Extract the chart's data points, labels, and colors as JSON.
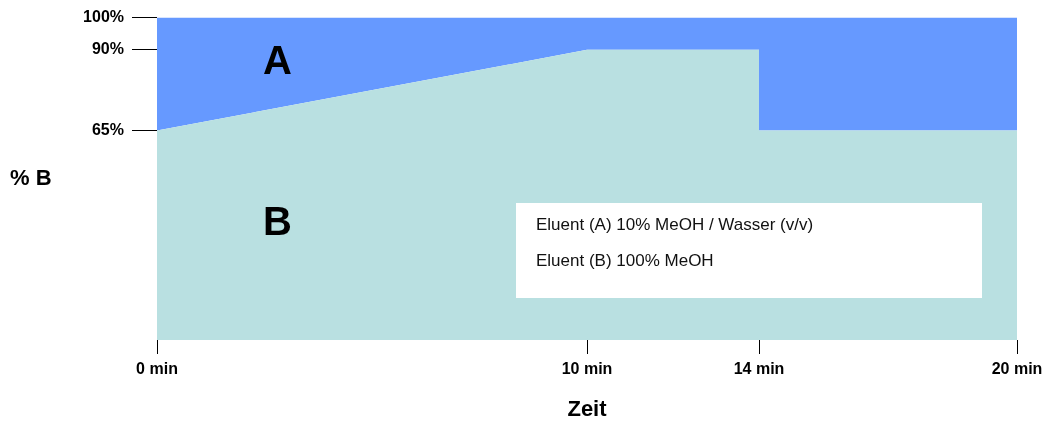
{
  "chart_data": {
    "type": "area",
    "stacked": true,
    "xlabel": "Zeit",
    "ylabel": "% B",
    "x": [
      0,
      10,
      14,
      14,
      20
    ],
    "series": [
      {
        "name": "B",
        "color": "#b9e0e1",
        "values": [
          65,
          90,
          90,
          65,
          65
        ]
      },
      {
        "name": "A",
        "color": "#6699ff",
        "values": [
          35,
          10,
          10,
          35,
          35
        ]
      }
    ],
    "xlim": [
      0,
      20
    ],
    "xticks": [
      {
        "value": 0,
        "label": "0 min"
      },
      {
        "value": 10,
        "label": "10 min"
      },
      {
        "value": 14,
        "label": "14 min"
      },
      {
        "value": 20,
        "label": "20 min"
      }
    ],
    "ylim": [
      0,
      100
    ],
    "yticks": [
      {
        "value": 65,
        "label": "65%"
      },
      {
        "value": 90,
        "label": "90%"
      },
      {
        "value": 100,
        "label": "100%"
      }
    ],
    "annotations": [
      "Eluent (A) 10% MeOH / Wasser (v/v)",
      "Eluent (B) 100% MeOH"
    ],
    "grid": false,
    "legend": false,
    "marker": "none"
  }
}
